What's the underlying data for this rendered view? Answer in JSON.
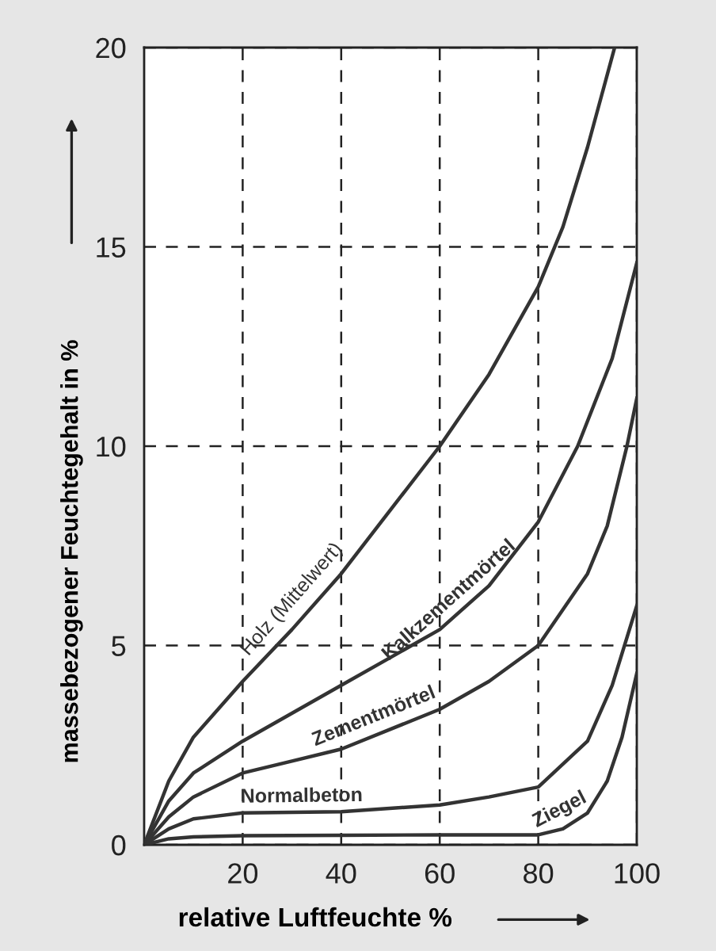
{
  "chart_data": {
    "type": "line",
    "xlabel": "relative Luftfeuchte %",
    "ylabel": "massebezogener Feuchtegehalt in %",
    "xlim": [
      0,
      100
    ],
    "xticks": [
      20,
      40,
      60,
      80,
      100
    ],
    "ylim": [
      0,
      20
    ],
    "yticks": [
      0,
      5,
      10,
      15,
      20
    ],
    "grid": true,
    "line_style": "solid",
    "legend": false,
    "series": [
      {
        "name": "Holz (Mittelwert)",
        "color": "#333333",
        "x": [
          0,
          5,
          10,
          20,
          30,
          40,
          50,
          60,
          70,
          80,
          85,
          90,
          95.5
        ],
        "values": [
          0,
          1.6,
          2.7,
          4.1,
          5.4,
          6.8,
          8.4,
          10,
          11.8,
          14,
          15.5,
          17.5,
          20
        ]
      },
      {
        "name": "Kalkzementmörtel",
        "color": "#333333",
        "x": [
          0,
          5,
          10,
          20,
          30,
          40,
          50,
          60,
          70,
          80,
          88,
          95,
          100
        ],
        "values": [
          0,
          1.1,
          1.8,
          2.6,
          3.3,
          4,
          4.7,
          5.4,
          6.5,
          8.1,
          10,
          12.2,
          14.6
        ]
      },
      {
        "name": "Zementmörtel",
        "color": "#333333",
        "x": [
          0,
          5,
          10,
          20,
          30,
          40,
          50,
          60,
          70,
          80,
          90,
          94,
          98,
          100
        ],
        "values": [
          0,
          0.7,
          1.2,
          1.8,
          2.1,
          2.4,
          2.9,
          3.4,
          4.1,
          5,
          6.8,
          8,
          10,
          11.2
        ]
      },
      {
        "name": "Normalbeton",
        "color": "#333333",
        "x": [
          0,
          5,
          10,
          20,
          40,
          60,
          70,
          80,
          90,
          95,
          100
        ],
        "values": [
          0,
          0.4,
          0.65,
          0.8,
          0.83,
          1,
          1.2,
          1.45,
          2.6,
          4,
          6
        ]
      },
      {
        "name": "Ziegel",
        "color": "#333333",
        "x": [
          0,
          5,
          10,
          20,
          40,
          60,
          80,
          85,
          90,
          94,
          97,
          100
        ],
        "values": [
          0,
          0.15,
          0.2,
          0.23,
          0.24,
          0.25,
          0.25,
          0.4,
          0.8,
          1.6,
          2.7,
          4.3
        ]
      }
    ]
  }
}
